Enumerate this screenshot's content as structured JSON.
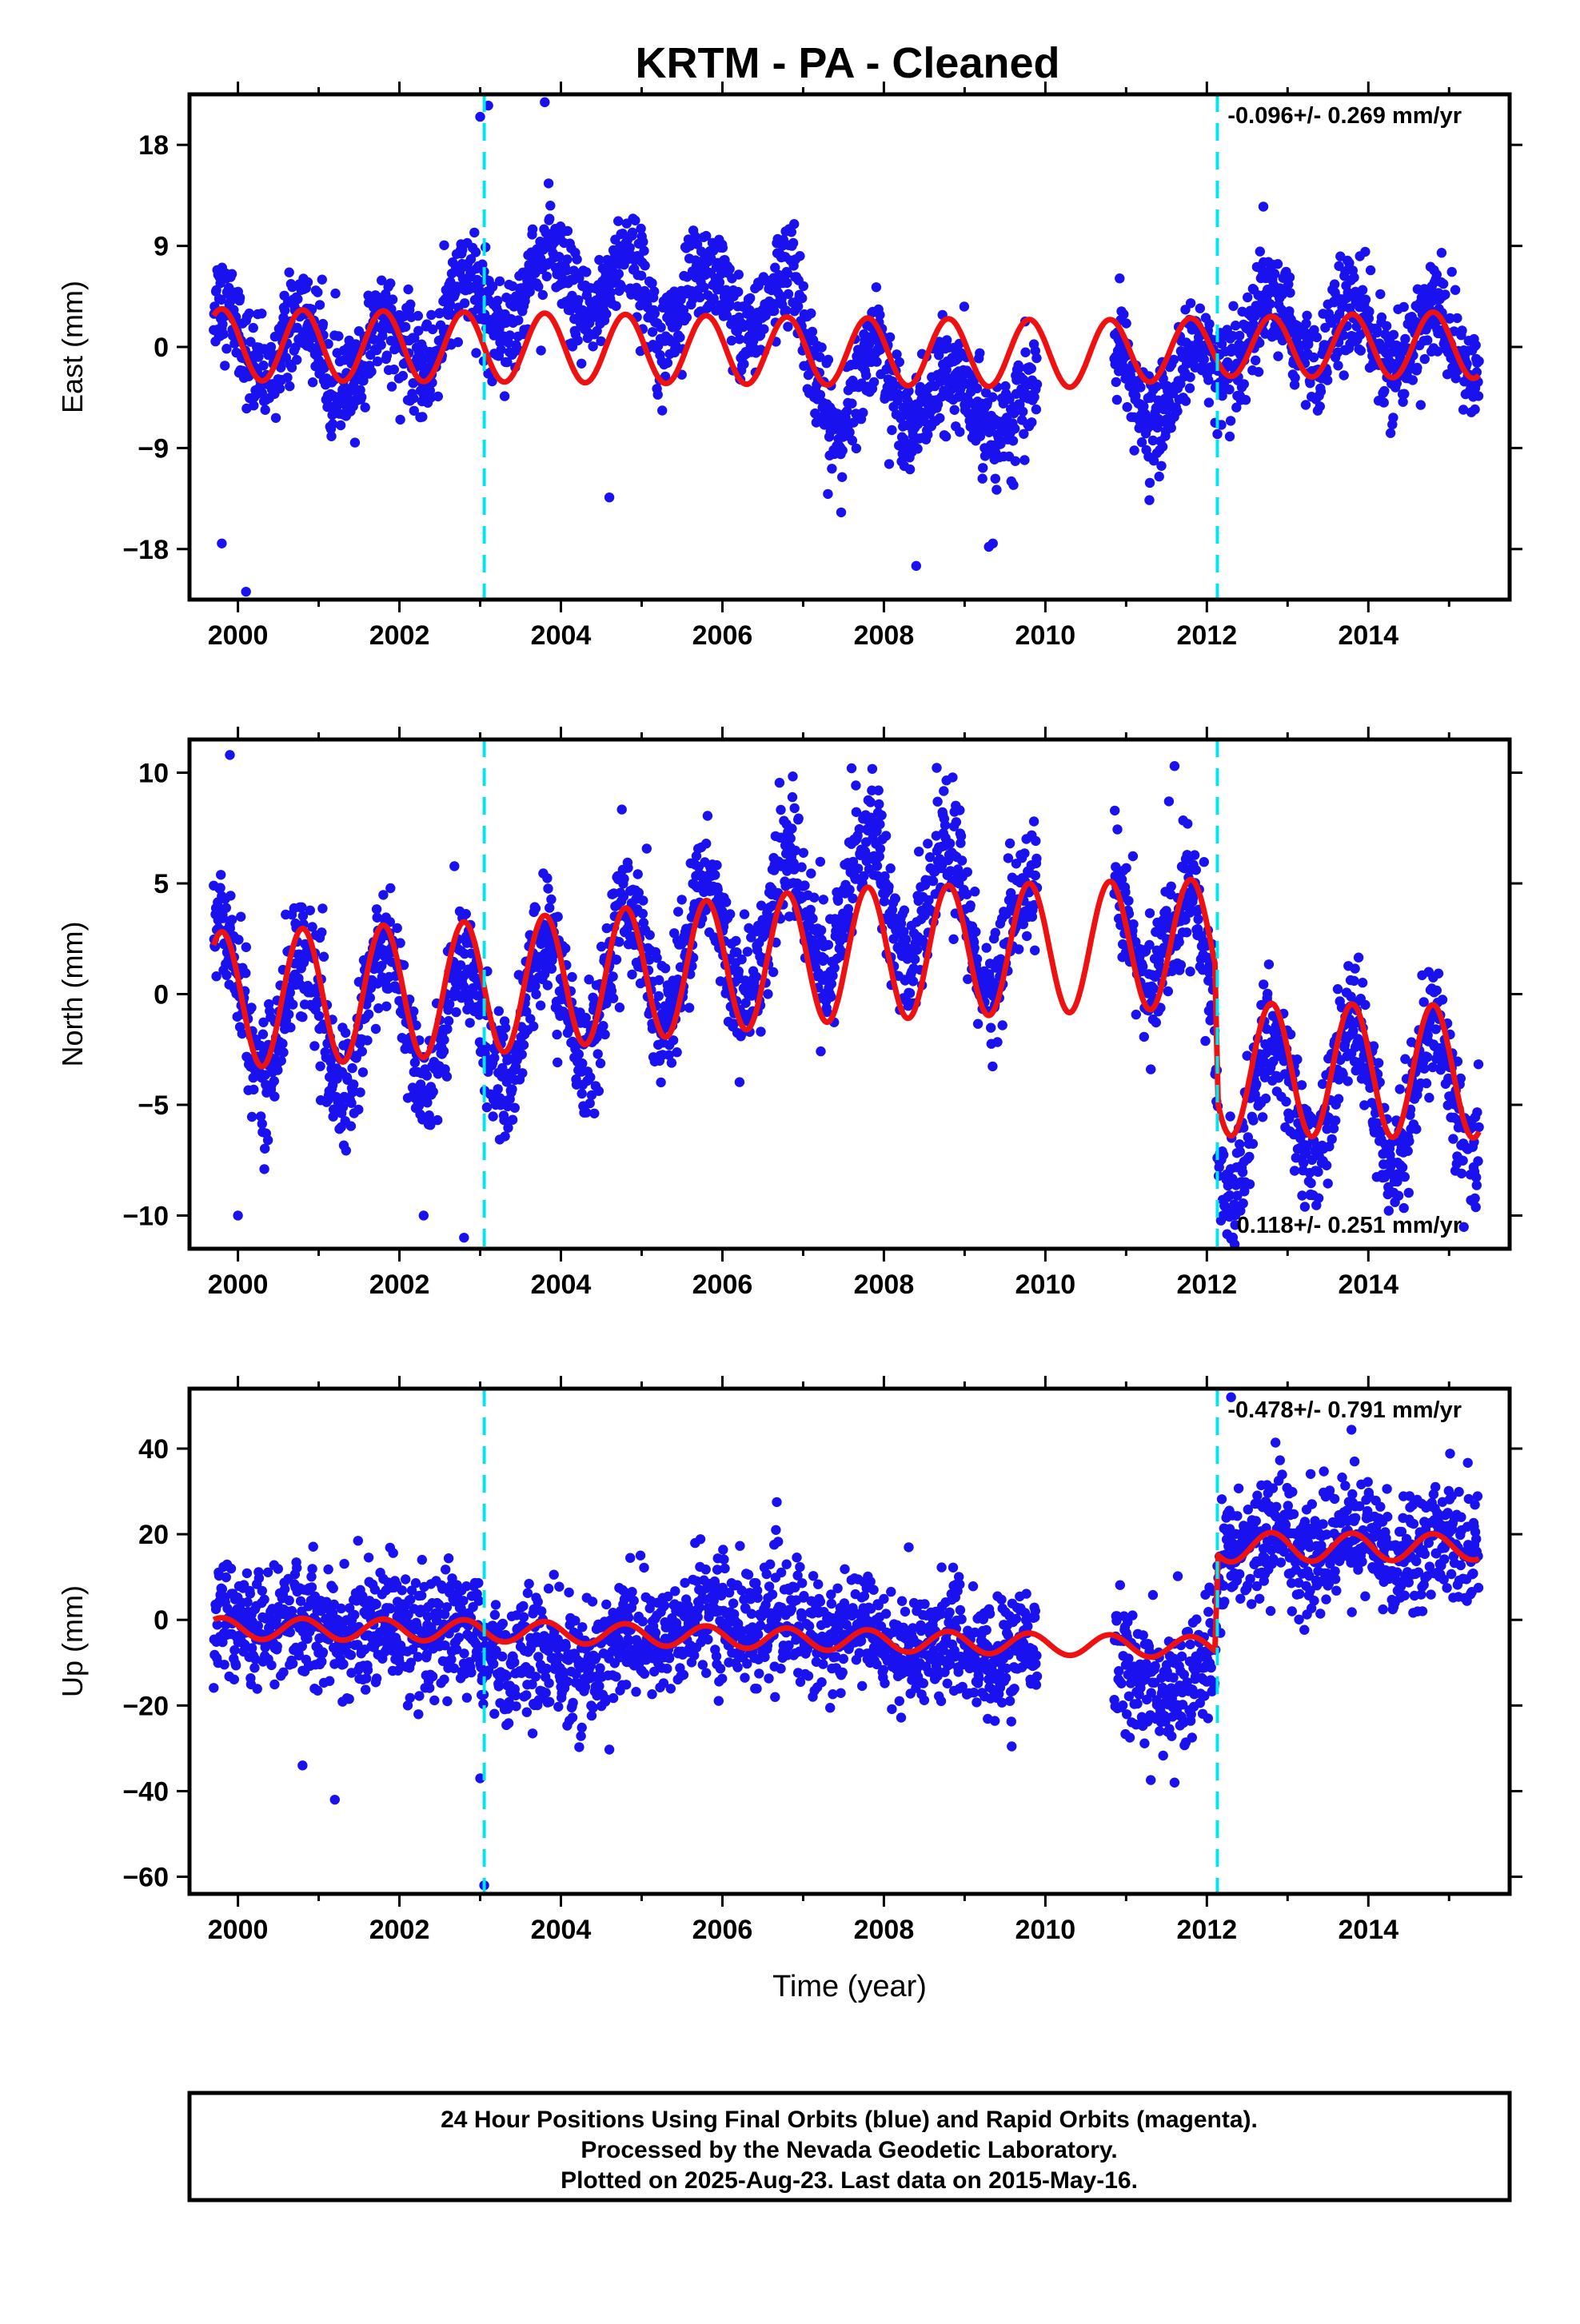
{
  "title": "KRTM  - PA - Cleaned",
  "chart_data": [
    {
      "type": "scatter",
      "ylabel": "East (mm)",
      "xlabel": "",
      "xlim": [
        1999.4,
        2015.75
      ],
      "ylim": [
        -22.5,
        22.5
      ],
      "x_ticks": [
        2000,
        2002,
        2004,
        2006,
        2008,
        2010,
        2012,
        2014
      ],
      "y_ticks": [
        18,
        9,
        0,
        -9,
        -18
      ],
      "y_tick_labels": [
        "18",
        "9",
        "0",
        "−9",
        "−18"
      ],
      "rate_text": "-0.096+/- 0.269 mm/yr",
      "rate_position": "top-right",
      "breaks": [
        2003.05,
        2012.13
      ],
      "data_range": [
        1999.7,
        2015.37
      ],
      "gap": [
        2009.9,
        2010.85
      ],
      "seasonal": [
        {
          "x": 1999.7,
          "amp": 3.2,
          "offset": 0.2
        },
        {
          "x": 2003.0,
          "amp": 3.1,
          "offset": 0.0
        },
        {
          "x": 2007.5,
          "amp": 3.0,
          "offset": -0.4
        },
        {
          "x": 2010.5,
          "amp": 3.0,
          "offset": -0.6
        },
        {
          "x": 2012.13,
          "amp": 2.6,
          "offset": 0.0
        },
        {
          "x": 2015.37,
          "amp": 3.0,
          "offset": 0.2
        }
      ],
      "residual": [
        [
          1999.7,
          1.0
        ],
        [
          2001.5,
          -1.5
        ],
        [
          2002.5,
          1.5
        ],
        [
          2003.3,
          5.0
        ],
        [
          2004.0,
          6.0
        ],
        [
          2005.0,
          5.0
        ],
        [
          2006.2,
          4.5
        ],
        [
          2006.9,
          4.0
        ],
        [
          2007.5,
          -6.5
        ],
        [
          2008.0,
          -1.0
        ],
        [
          2008.7,
          -5.5
        ],
        [
          2009.3,
          -3.0
        ],
        [
          2009.6,
          -7.0
        ],
        [
          2010.9,
          -2.0
        ],
        [
          2011.5,
          -4.5
        ],
        [
          2012.2,
          -0.5
        ],
        [
          2012.8,
          1.5
        ],
        [
          2015.37,
          0.0
        ]
      ],
      "scatter_sigma": 2.2,
      "outliers": [
        [
          1999.8,
          -17.5
        ],
        [
          2000.1,
          -21.8
        ],
        [
          2003.0,
          20.5
        ],
        [
          2003.1,
          21.5
        ],
        [
          2003.8,
          21.8
        ],
        [
          2004.6,
          -13.4
        ],
        [
          2008.4,
          -19.5
        ],
        [
          2009.3,
          -17.8
        ],
        [
          2009.35,
          -17.5
        ],
        [
          2012.7,
          12.5
        ]
      ]
    },
    {
      "type": "scatter",
      "ylabel": "North (mm)",
      "xlabel": "",
      "xlim": [
        1999.4,
        2015.75
      ],
      "ylim": [
        -11.5,
        11.5
      ],
      "x_ticks": [
        2000,
        2002,
        2004,
        2006,
        2008,
        2010,
        2012,
        2014
      ],
      "y_ticks": [
        10,
        5,
        0,
        -5,
        -10
      ],
      "y_tick_labels": [
        "10",
        "5",
        "0",
        "−5",
        "−10"
      ],
      "rate_text": "0.118+/- 0.251 mm/yr",
      "rate_position": "bottom-right",
      "breaks": [
        2003.05,
        2012.13
      ],
      "data_range": [
        1999.7,
        2015.37
      ],
      "gap": [
        2009.9,
        2010.85
      ],
      "seasonal": [
        {
          "x": 1999.7,
          "amp": 3.1,
          "offset": -0.3
        },
        {
          "x": 2003.05,
          "amp": 3.0,
          "offset": 0.3
        },
        {
          "x": 2007.5,
          "amp": 3.0,
          "offset": 1.8
        },
        {
          "x": 2012.1,
          "amp": 2.9,
          "offset": 2.3
        },
        {
          "x": 2012.14,
          "amp": 3.0,
          "offset": -3.4
        },
        {
          "x": 2015.37,
          "amp": 3.0,
          "offset": -3.5
        }
      ],
      "residual": [
        [
          1999.7,
          0.5
        ],
        [
          2001.0,
          -1.5
        ],
        [
          2002.0,
          -1.0
        ],
        [
          2003.0,
          -2.0
        ],
        [
          2004.0,
          -1.0
        ],
        [
          2005.0,
          0.5
        ],
        [
          2006.0,
          1.0
        ],
        [
          2007.0,
          2.0
        ],
        [
          2008.0,
          3.0
        ],
        [
          2009.0,
          1.5
        ],
        [
          2010.0,
          0.0
        ],
        [
          2011.5,
          1.0
        ],
        [
          2012.2,
          -3.0
        ],
        [
          2013.0,
          -1.0
        ],
        [
          2015.37,
          -1.0
        ]
      ],
      "scatter_sigma": 1.4,
      "outliers": [
        [
          1999.9,
          10.8
        ],
        [
          2000.0,
          -10.0
        ],
        [
          2002.3,
          -10.0
        ],
        [
          2002.8,
          -11.0
        ],
        [
          2007.6,
          10.2
        ],
        [
          2011.6,
          10.3
        ],
        [
          2012.2,
          -10.0
        ]
      ]
    },
    {
      "type": "scatter",
      "ylabel": "Up (mm)",
      "xlabel": "Time (year)",
      "xlim": [
        1999.4,
        2015.75
      ],
      "ylim": [
        -64,
        54
      ],
      "x_ticks": [
        2000,
        2002,
        2004,
        2006,
        2008,
        2010,
        2012,
        2014
      ],
      "y_ticks": [
        40,
        20,
        0,
        -20,
        -40,
        -60
      ],
      "y_tick_labels": [
        "40",
        "20",
        "0",
        "−20",
        "−40",
        "−60"
      ],
      "rate_text": "-0.478+/- 0.791 mm/yr",
      "rate_position": "top-right",
      "breaks": [
        2003.05,
        2012.13
      ],
      "data_range": [
        1999.7,
        2015.37
      ],
      "gap": [
        2009.9,
        2010.85
      ],
      "seasonal": [
        {
          "x": 1999.7,
          "amp": 2.5,
          "offset": -2.0
        },
        {
          "x": 2003.0,
          "amp": 2.5,
          "offset": -2.5
        },
        {
          "x": 2007.0,
          "amp": 2.5,
          "offset": -4.5
        },
        {
          "x": 2012.1,
          "amp": 2.5,
          "offset": -6.5
        },
        {
          "x": 2012.14,
          "amp": 3.5,
          "offset": 17.0
        },
        {
          "x": 2015.37,
          "amp": 3.0,
          "offset": 17.0
        }
      ],
      "residual": [
        [
          1999.7,
          2.0
        ],
        [
          2002.0,
          0.0
        ],
        [
          2004.0,
          -8.0
        ],
        [
          2006.0,
          5.0
        ],
        [
          2008.0,
          0.0
        ],
        [
          2009.5,
          -3.0
        ],
        [
          2011.0,
          -4.0
        ],
        [
          2011.7,
          -12.0
        ],
        [
          2012.3,
          2.0
        ],
        [
          2015.37,
          0.0
        ]
      ],
      "scatter_sigma": 7.0,
      "outliers": [
        [
          2000.8,
          -34
        ],
        [
          2001.2,
          -42
        ],
        [
          2003.0,
          -37
        ],
        [
          2003.05,
          -62
        ],
        [
          2012.3,
          52
        ],
        [
          2011.6,
          -38
        ]
      ]
    }
  ],
  "footer": {
    "line1": "24 Hour Positions Using Final Orbits (blue) and Rapid Orbits (magenta).",
    "line2": "Processed by the Nevada Geodetic Laboratory.",
    "line3": "Plotted on 2025-Aug-23. Last data on 2015-May-16."
  },
  "colors": {
    "points": "#1a12ee",
    "model": "#ee1111",
    "breaks": "#00e5ee",
    "frame": "#000000"
  }
}
